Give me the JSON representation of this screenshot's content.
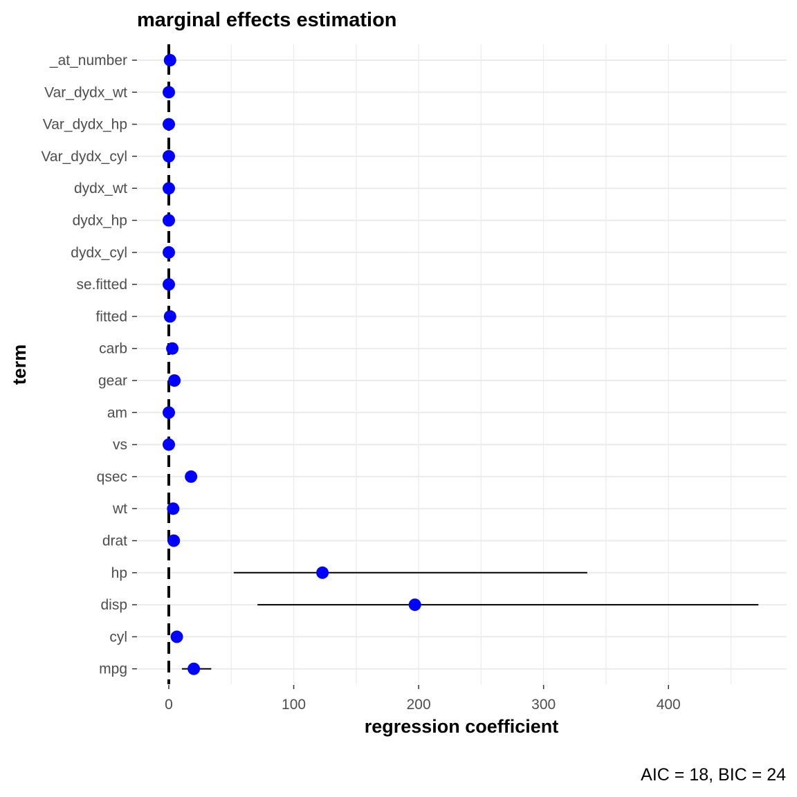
{
  "chart_data": {
    "type": "scatter",
    "title": "marginal effects estimation",
    "xlabel": "regression coefficient",
    "ylabel": "term",
    "caption": "AIC = 18, BIC = 24",
    "xlim": [
      -20,
      495
    ],
    "x_ticks": [
      0,
      100,
      200,
      300,
      400
    ],
    "x_tick_labels": [
      "0",
      "100",
      "200",
      "300",
      "400"
    ],
    "reference_line_x": 0,
    "point_color": "#0000ff",
    "grid": true,
    "terms": [
      "_at_number",
      "Var_dydx_wt",
      "Var_dydx_hp",
      "Var_dydx_cyl",
      "dydx_wt",
      "dydx_hp",
      "dydx_cyl",
      "se.fitted",
      "fitted",
      "carb",
      "gear",
      "am",
      "vs",
      "qsec",
      "wt",
      "drat",
      "hp",
      "disp",
      "cyl",
      "mpg"
    ],
    "estimates": [
      1,
      0,
      0,
      0,
      0,
      0,
      0,
      0,
      1,
      2.8,
      4.5,
      0,
      0,
      17.8,
      3.5,
      4,
      123,
      197,
      6.4,
      20
    ],
    "conf_low": [
      null,
      null,
      null,
      null,
      null,
      null,
      null,
      null,
      null,
      1.2,
      3.3,
      null,
      null,
      null,
      2.5,
      3.2,
      52,
      71,
      4,
      10.5
    ],
    "conf_high": [
      null,
      null,
      null,
      null,
      null,
      null,
      null,
      null,
      null,
      4.5,
      5.6,
      null,
      null,
      null,
      4.8,
      4.9,
      335,
      472,
      8.5,
      34
    ]
  }
}
